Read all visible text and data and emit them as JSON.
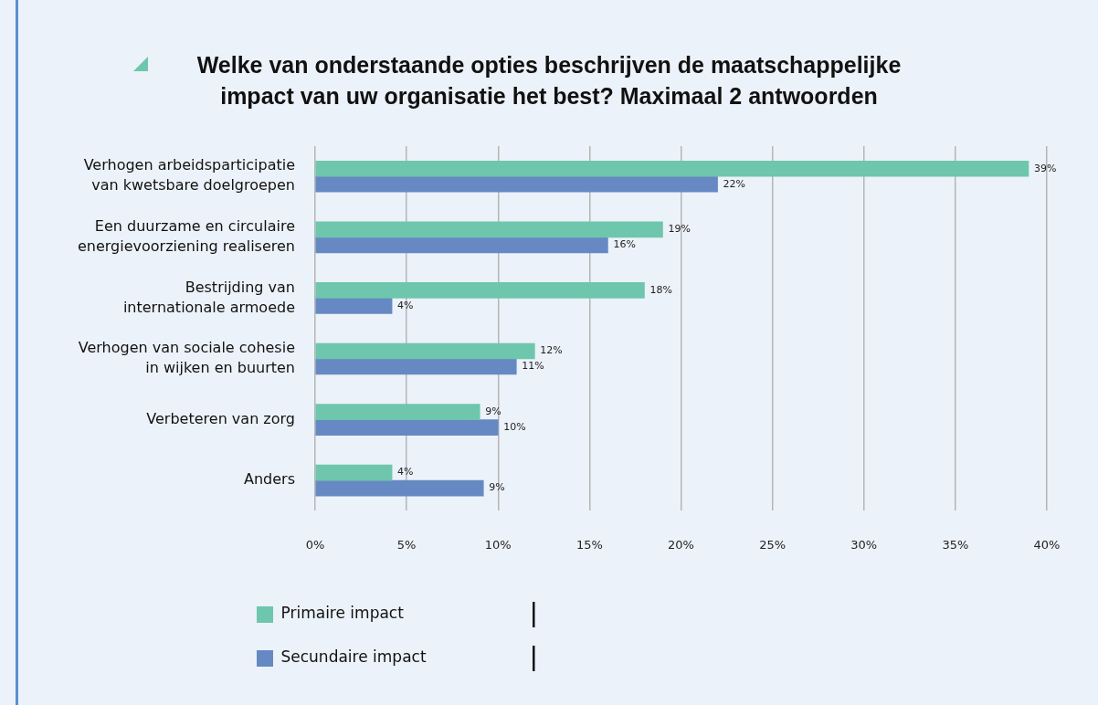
{
  "chart_data": {
    "type": "bar",
    "orientation": "horizontal",
    "title": "Welke van onderstaande opties beschrijven de maatschappelijke\nimpact van uw organisatie het best? Maximaal 2 antwoorden",
    "categories": [
      "Verhogen arbeidsparticipatie\nvan kwetsbare doelgroepen",
      "Een duurzame en circulaire\nenergievoorziening realiseren",
      "Bestrijding van\ninternationale armoede",
      "Verhogen van sociale cohesie\nin wijken en buurten",
      "Verbeteren van zorg",
      "Anders"
    ],
    "series": [
      {
        "name": "Primaire impact",
        "color": "#6ec6ad",
        "values": [
          39,
          19,
          18,
          12,
          9,
          4.2
        ],
        "value_labels": [
          "39%",
          "19%",
          "18%",
          "12%",
          "9%",
          "4%"
        ]
      },
      {
        "name": "Secundaire impact",
        "color": "#6689c3",
        "values": [
          22,
          16,
          4.2,
          11,
          10,
          9.2
        ],
        "value_labels": [
          "22%",
          "16%",
          "4%",
          "11%",
          "10%",
          "9%"
        ]
      }
    ],
    "xlim": [
      0,
      40
    ],
    "xticks": [
      {
        "value": 0,
        "label": "0%"
      },
      {
        "value": 5,
        "label": "5%"
      },
      {
        "value": 10,
        "label": "10%"
      },
      {
        "value": 15,
        "label": "15%"
      },
      {
        "value": 20,
        "label": "20%"
      },
      {
        "value": 25,
        "label": "25%"
      },
      {
        "value": 30,
        "label": "30%"
      },
      {
        "value": 35,
        "label": "35%"
      },
      {
        "value": 40,
        "label": "40%"
      }
    ],
    "grid": "x",
    "legend": "bottom"
  }
}
